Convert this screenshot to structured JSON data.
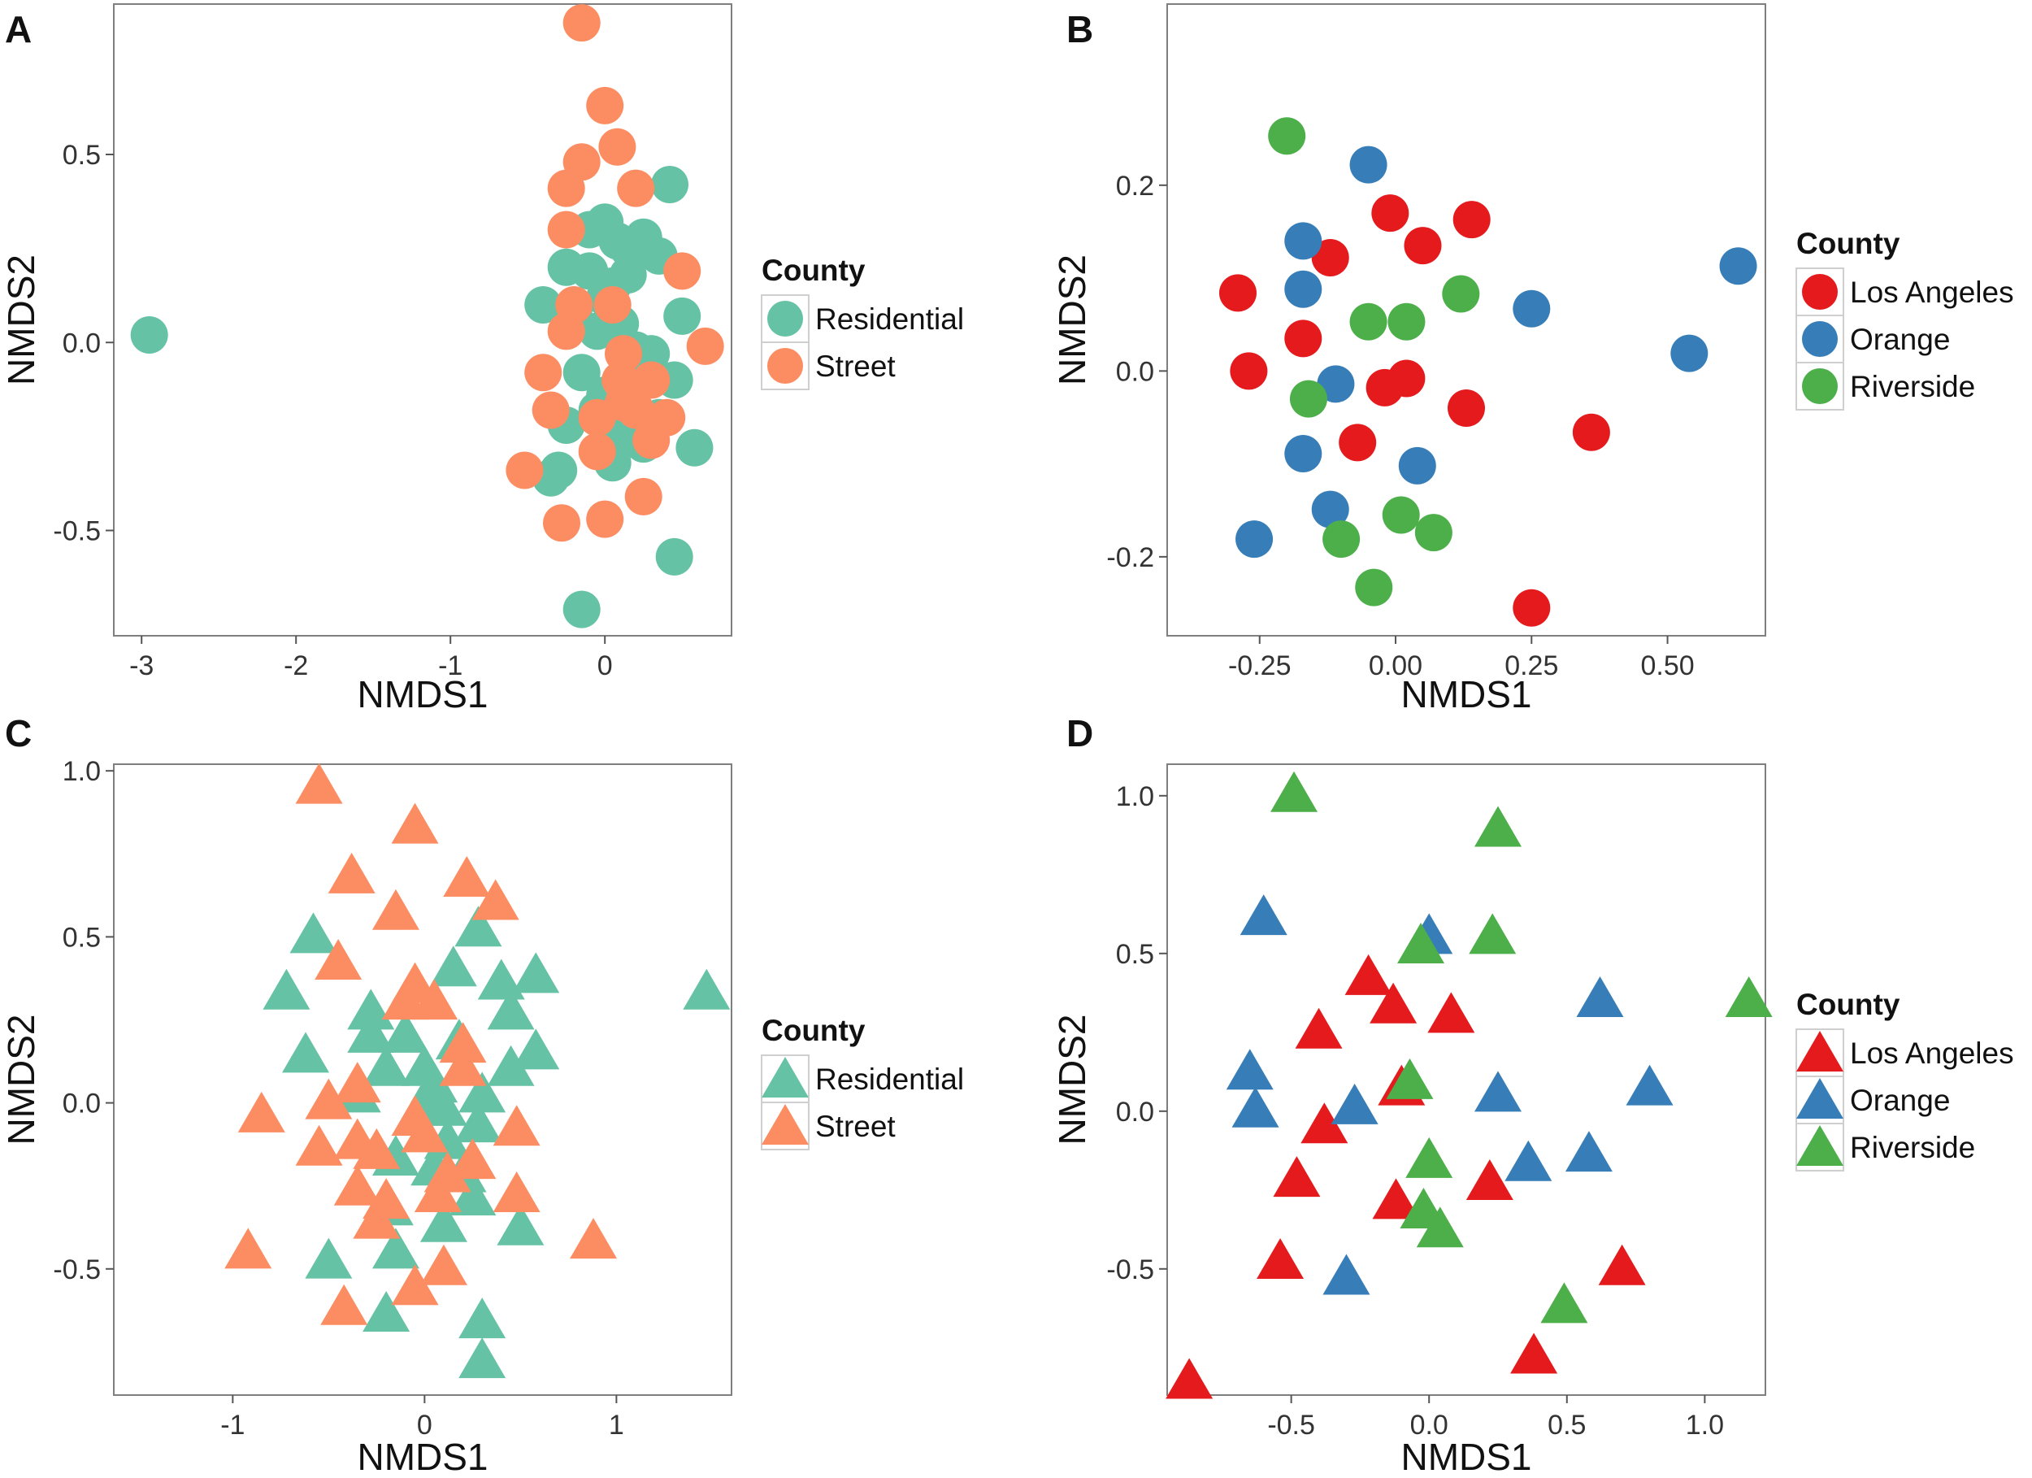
{
  "chart_data": [
    {
      "panel": "A",
      "type": "scatter",
      "marker": "circle",
      "xlabel": "NMDS1",
      "ylabel": "NMDS2",
      "xlim": [
        -3.18,
        0.82
      ],
      "ylim": [
        -0.78,
        0.9
      ],
      "xticks": [
        -3,
        -2,
        -1,
        0
      ],
      "xticklabels": [
        "-3",
        "-2",
        "-1",
        "0"
      ],
      "yticks": [
        -0.5,
        0,
        0.5
      ],
      "yticklabels": [
        "-0.5",
        "0.0",
        "0.5"
      ],
      "legend": {
        "title": "County",
        "position": "right"
      },
      "series": [
        {
          "name": "Residential",
          "color": "#66c2a5",
          "x": [
            -2.95,
            0.42,
            0.0,
            0.08,
            0.25,
            0.35,
            -0.25,
            -0.1,
            0.15,
            0.05,
            -0.4,
            -0.2,
            0.5,
            0.1,
            -0.05,
            0.3,
            -0.15,
            0.2,
            0.45,
            0.0,
            -0.25,
            0.1,
            0.35,
            0.58,
            -0.35,
            0.05,
            0.25,
            -0.3,
            0.45,
            -0.15,
            0.15,
            -0.1,
            0.0,
            0.2,
            -0.05
          ],
          "y": [
            0.02,
            0.42,
            0.32,
            0.27,
            0.28,
            0.23,
            0.2,
            0.19,
            0.18,
            0.15,
            0.1,
            0.09,
            0.07,
            0.05,
            0.03,
            -0.03,
            -0.08,
            -0.05,
            -0.1,
            -0.14,
            -0.22,
            -0.25,
            -0.2,
            -0.28,
            -0.36,
            -0.32,
            -0.27,
            -0.34,
            -0.57,
            -0.71,
            0.25,
            0.3,
            0.12,
            -0.02,
            -0.18
          ]
        },
        {
          "name": "Street",
          "color": "#fc8d62",
          "x": [
            -0.15,
            0.0,
            0.08,
            -0.15,
            0.2,
            -0.25,
            -0.25,
            0.5,
            -0.2,
            0.05,
            0.12,
            0.65,
            -0.25,
            0.3,
            -0.4,
            0.1,
            -0.35,
            0.2,
            0.4,
            -0.05,
            0.3,
            -0.52,
            -0.05,
            0.25,
            -0.28,
            0.0,
            0.12
          ],
          "y": [
            0.85,
            0.63,
            0.52,
            0.48,
            0.41,
            0.41,
            0.3,
            0.19,
            0.1,
            0.1,
            -0.03,
            -0.01,
            0.03,
            -0.1,
            -0.08,
            -0.1,
            -0.18,
            -0.18,
            -0.2,
            -0.2,
            -0.26,
            -0.34,
            -0.29,
            -0.41,
            -0.48,
            -0.47,
            -0.16
          ]
        }
      ]
    },
    {
      "panel": "B",
      "type": "scatter",
      "marker": "circle",
      "xlabel": "NMDS1",
      "ylabel": "NMDS2",
      "xlim": [
        -0.42,
        0.68
      ],
      "ylim": [
        -0.285,
        0.395
      ],
      "xticks": [
        -0.25,
        0,
        0.25,
        0.5
      ],
      "xticklabels": [
        "-0.25",
        "0.00",
        "0.25",
        "0.50"
      ],
      "yticks": [
        -0.2,
        0,
        0.2
      ],
      "yticklabels": [
        "-0.2",
        "0.0",
        "0.2"
      ],
      "legend": {
        "title": "County",
        "position": "right"
      },
      "series": [
        {
          "name": "Los Angeles",
          "color": "#e41a1c",
          "x": [
            -0.01,
            0.14,
            0.05,
            -0.12,
            -0.29,
            -0.17,
            -0.27,
            0.02,
            -0.02,
            0.13,
            0.36,
            -0.07,
            0.25
          ],
          "y": [
            0.17,
            0.163,
            0.135,
            0.122,
            0.084,
            0.035,
            0.0,
            -0.008,
            -0.018,
            -0.04,
            -0.066,
            -0.077,
            -0.255
          ]
        },
        {
          "name": "Orange",
          "color": "#377eb8",
          "x": [
            -0.05,
            -0.17,
            0.63,
            -0.17,
            0.25,
            0.54,
            -0.11,
            -0.17,
            0.04,
            -0.12,
            -0.26
          ],
          "y": [
            0.222,
            0.14,
            0.113,
            0.088,
            0.067,
            0.019,
            -0.014,
            -0.089,
            -0.102,
            -0.149,
            -0.181
          ]
        },
        {
          "name": "Riverside",
          "color": "#4daf4a",
          "x": [
            -0.2,
            0.12,
            -0.05,
            0.02,
            -0.16,
            0.01,
            0.07,
            -0.1,
            -0.04
          ],
          "y": [
            0.253,
            0.083,
            0.053,
            0.053,
            -0.03,
            -0.155,
            -0.174,
            -0.181,
            -0.233
          ]
        }
      ]
    },
    {
      "panel": "C",
      "type": "scatter",
      "marker": "triangle",
      "xlabel": "NMDS1",
      "ylabel": "NMDS2",
      "xlim": [
        -1.62,
        1.6
      ],
      "ylim": [
        -0.88,
        1.02
      ],
      "xticks": [
        -1,
        0,
        1
      ],
      "xticklabels": [
        "-1",
        "0",
        "1"
      ],
      "yticks": [
        -0.5,
        0,
        0.5,
        1
      ],
      "yticklabels": [
        "-0.5",
        "0.0",
        "0.5",
        "1.0"
      ],
      "legend": {
        "title": "County",
        "position": "right"
      },
      "series": [
        {
          "name": "Residential",
          "color": "#66c2a5",
          "x": [
            1.47,
            0.28,
            -0.58,
            0.15,
            0.4,
            0.58,
            -0.72,
            -0.28,
            0.45,
            -0.28,
            -0.1,
            0.18,
            -0.62,
            0.58,
            0.45,
            0.0,
            -0.2,
            0.05,
            0.3,
            0.1,
            0.28,
            -0.15,
            0.05,
            0.2,
            0.5,
            0.1,
            -0.15,
            -0.2,
            -0.5,
            0.3,
            -0.18
          ],
          "y": [
            0.33,
            0.52,
            0.5,
            0.4,
            0.36,
            0.38,
            0.33,
            0.27,
            0.27,
            0.2,
            0.2,
            0.18,
            0.14,
            0.15,
            0.1,
            0.1,
            0.1,
            0.05,
            0.02,
            -0.02,
            -0.07,
            -0.17,
            -0.2,
            -0.22,
            -0.38,
            -0.37,
            -0.45,
            -0.64,
            -0.48,
            -0.66,
            -0.32
          ],
          "extra_x": [
            0.3,
            0.0,
            0.25,
            -0.35,
            0.12
          ],
          "extra_y": [
            -0.78,
            -0.02,
            -0.29,
            0.02,
            -0.12
          ]
        },
        {
          "name": "Street",
          "color": "#fc8d62",
          "x": [
            -0.55,
            -0.05,
            -0.38,
            0.22,
            0.37,
            -0.15,
            -0.45,
            -0.1,
            0.05,
            0.2,
            0.2,
            -0.5,
            -0.35,
            -0.85,
            -0.35,
            0.48,
            -0.55,
            -0.25,
            0.0,
            0.12,
            0.48,
            -0.35,
            -0.25,
            0.07,
            0.88,
            -0.92,
            0.1,
            -0.05,
            -0.42,
            -0.05
          ],
          "y": [
            0.95,
            0.83,
            0.68,
            0.67,
            0.6,
            0.57,
            0.42,
            0.3,
            0.3,
            0.17,
            0.1,
            0.0,
            0.05,
            -0.04,
            -0.12,
            -0.08,
            -0.14,
            -0.15,
            -0.1,
            -0.22,
            -0.28,
            -0.26,
            -0.36,
            -0.28,
            -0.42,
            -0.45,
            -0.5,
            -0.56,
            -0.62,
            0.35
          ],
          "extra_x": [
            -0.2,
            -0.05,
            0.25
          ],
          "extra_y": [
            -0.3,
            -0.05,
            -0.18
          ]
        }
      ]
    },
    {
      "panel": "D",
      "type": "scatter",
      "marker": "triangle",
      "xlabel": "NMDS1",
      "ylabel": "NMDS2",
      "xlim": [
        -0.95,
        1.22
      ],
      "ylim": [
        -0.9,
        1.1
      ],
      "xticks": [
        -0.5,
        0,
        0.5,
        1
      ],
      "xticklabels": [
        "-0.5",
        "0.0",
        "0.5",
        "1.0"
      ],
      "yticks": [
        -0.5,
        0,
        0.5,
        1
      ],
      "yticklabels": [
        "-0.5",
        "0.0",
        "0.5",
        "1.0"
      ],
      "legend": {
        "title": "County",
        "position": "right"
      },
      "series": [
        {
          "name": "Los Angeles",
          "color": "#e41a1c",
          "x": [
            -0.22,
            -0.13,
            0.08,
            -0.4,
            -0.38,
            -0.1,
            -0.48,
            -0.12,
            0.22,
            -0.54,
            0.7,
            0.38,
            -0.87
          ],
          "y": [
            0.42,
            0.33,
            0.3,
            0.25,
            -0.05,
            0.07,
            -0.22,
            -0.29,
            -0.23,
            -0.48,
            -0.5,
            -0.78,
            -0.86
          ]
        },
        {
          "name": "Orange",
          "color": "#377eb8",
          "x": [
            -0.6,
            0.0,
            0.62,
            -0.65,
            0.8,
            -0.63,
            -0.27,
            0.25,
            0.58,
            0.36,
            -0.3
          ],
          "y": [
            0.61,
            0.55,
            0.35,
            0.12,
            0.07,
            0.0,
            0.01,
            0.05,
            -0.14,
            -0.17,
            -0.53
          ]
        },
        {
          "name": "Riverside",
          "color": "#4daf4a",
          "x": [
            -0.49,
            0.25,
            0.23,
            -0.03,
            1.16,
            -0.07,
            0.0,
            -0.02,
            0.04,
            0.49
          ],
          "y": [
            1.0,
            0.89,
            0.55,
            0.52,
            0.35,
            0.09,
            -0.16,
            -0.32,
            -0.38,
            -0.62
          ]
        }
      ]
    }
  ]
}
